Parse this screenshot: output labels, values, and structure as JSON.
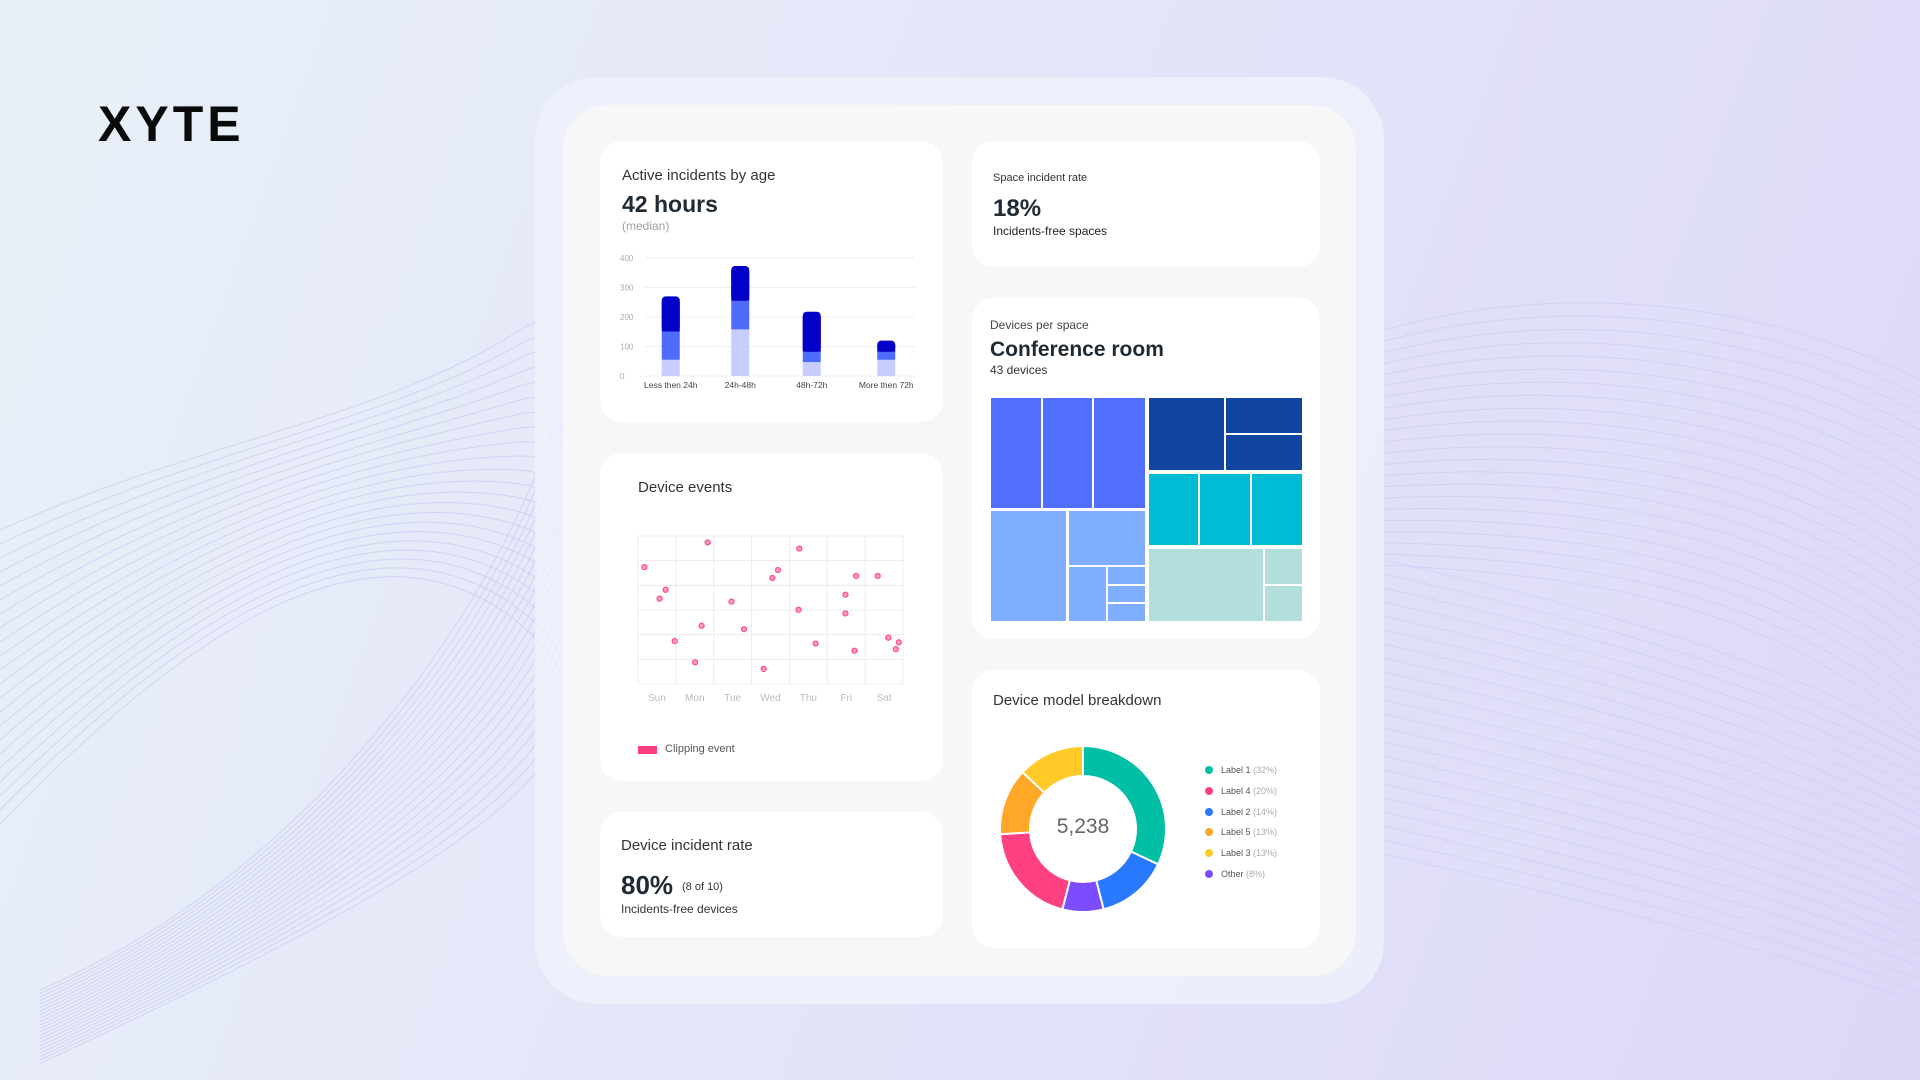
{
  "brand": {
    "logo_text": "XYTE"
  },
  "incidents_by_age": {
    "title": "Active incidents by age",
    "value": "42 hours",
    "note": "(median)",
    "chart_data": {
      "type": "bar",
      "stacked": true,
      "categories": [
        "Less then 24h",
        "24h-48h",
        "48h-72h",
        "More then 72h"
      ],
      "series": [
        {
          "values": [
            55,
            158,
            47,
            55
          ],
          "color": "#c7cefe"
        },
        {
          "values": [
            96,
            97,
            35,
            27
          ],
          "color": "#4f6bfd"
        },
        {
          "values": [
            119,
            118,
            136,
            38
          ],
          "color": "#0300c8"
        }
      ],
      "ylim": [
        0,
        400
      ],
      "yticks": [
        0,
        100,
        200,
        300,
        400
      ],
      "grid": true
    }
  },
  "device_events": {
    "title": "Device events",
    "chart_data": {
      "type": "scatter",
      "categories": [
        "Sun",
        "Mon",
        "Tue",
        "Wed",
        "Thu",
        "Fri",
        "Sat"
      ],
      "grid": true,
      "series": [
        {
          "name": "Clipping event",
          "color": "#ff3d7f",
          "points": [
            [
              1.84,
              5.74
            ],
            [
              0.17,
              4.74
            ],
            [
              0.73,
              3.82
            ],
            [
              0.57,
              3.46
            ],
            [
              0.97,
              1.74
            ],
            [
              1.68,
              2.36
            ],
            [
              1.51,
              0.88
            ],
            [
              2.47,
              3.34
            ],
            [
              2.8,
              2.22
            ],
            [
              3.32,
              0.61
            ],
            [
              3.55,
              4.3
            ],
            [
              3.7,
              4.62
            ],
            [
              4.26,
              5.49
            ],
            [
              4.24,
              3.01
            ],
            [
              4.69,
              1.64
            ],
            [
              5.48,
              3.62
            ],
            [
              5.76,
              4.38
            ],
            [
              5.48,
              2.86
            ],
            [
              5.72,
              1.35
            ],
            [
              6.33,
              4.38
            ],
            [
              6.61,
              1.88
            ],
            [
              6.89,
              1.69
            ],
            [
              6.81,
              1.41
            ]
          ]
        }
      ],
      "legend": "bottom-left"
    }
  },
  "device_incident_rate": {
    "title": "Device incident rate",
    "value": "80%",
    "detail": "(8 of 10)",
    "caption": "Incidents-free devices"
  },
  "space_incident_rate": {
    "label": "Space incident rate",
    "value": "18%",
    "caption": "Incidents-free spaces"
  },
  "devices_per_space": {
    "label": "Devices per space",
    "title": "Conference room",
    "count": "43 devices",
    "colors": [
      "#526ffe",
      "#80aeff",
      "#1045a0",
      "#00bcd4",
      "#b2dfdb"
    ]
  },
  "device_model_breakdown": {
    "title": "Device model breakdown",
    "total": "5,238",
    "chart_data": {
      "type": "pie",
      "donut": true,
      "slices": [
        {
          "label": "Label 1",
          "pct": "(32%)",
          "value": 32,
          "color": "#00bfa5"
        },
        {
          "label": "Label 2",
          "pct": "(14%)",
          "value": 14,
          "color": "#2979ff"
        },
        {
          "label": "Other",
          "pct": "(8%)",
          "value": 8,
          "color": "#7c4dff"
        },
        {
          "label": "Label 4",
          "pct": "(20%)",
          "value": 20,
          "color": "#ff4081"
        },
        {
          "label": "Label 5",
          "pct": "(13%)",
          "value": 13,
          "color": "#ffa726"
        },
        {
          "label": "Label 3",
          "pct": "(13%)",
          "value": 13,
          "color": "#ffca28"
        }
      ],
      "legend_order": [
        0,
        3,
        1,
        4,
        5,
        2
      ],
      "legend": "right"
    }
  }
}
